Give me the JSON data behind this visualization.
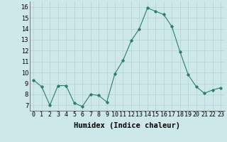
{
  "x": [
    0,
    1,
    2,
    3,
    4,
    5,
    6,
    7,
    8,
    9,
    10,
    11,
    12,
    13,
    14,
    15,
    16,
    17,
    18,
    19,
    20,
    21,
    22,
    23
  ],
  "y": [
    9.3,
    8.7,
    7.0,
    8.8,
    8.8,
    7.2,
    6.9,
    8.0,
    7.9,
    7.3,
    9.9,
    11.1,
    12.9,
    14.0,
    15.9,
    15.6,
    15.3,
    14.2,
    11.9,
    9.8,
    8.7,
    8.1,
    8.4,
    8.6
  ],
  "line_color": "#2d7d6e",
  "marker": "D",
  "marker_size": 1.8,
  "bg_color": "#cce8e8",
  "grid_color": "#b8d4d4",
  "xlabel": "Humidex (Indice chaleur)",
  "ylim": [
    6.5,
    16.5
  ],
  "xlim": [
    -0.5,
    23.5
  ],
  "yticks": [
    7,
    8,
    9,
    10,
    11,
    12,
    13,
    14,
    15,
    16
  ],
  "xticks": [
    0,
    1,
    2,
    3,
    4,
    5,
    6,
    7,
    8,
    9,
    10,
    11,
    12,
    13,
    14,
    15,
    16,
    17,
    18,
    19,
    20,
    21,
    22,
    23
  ],
  "xtick_labels": [
    "0",
    "1",
    "2",
    "3",
    "4",
    "5",
    "6",
    "7",
    "8",
    "9",
    "10",
    "11",
    "12",
    "13",
    "14",
    "15",
    "16",
    "17",
    "18",
    "19",
    "20",
    "21",
    "22",
    "23"
  ],
  "label_fontsize": 7.5,
  "tick_fontsize": 6.0
}
